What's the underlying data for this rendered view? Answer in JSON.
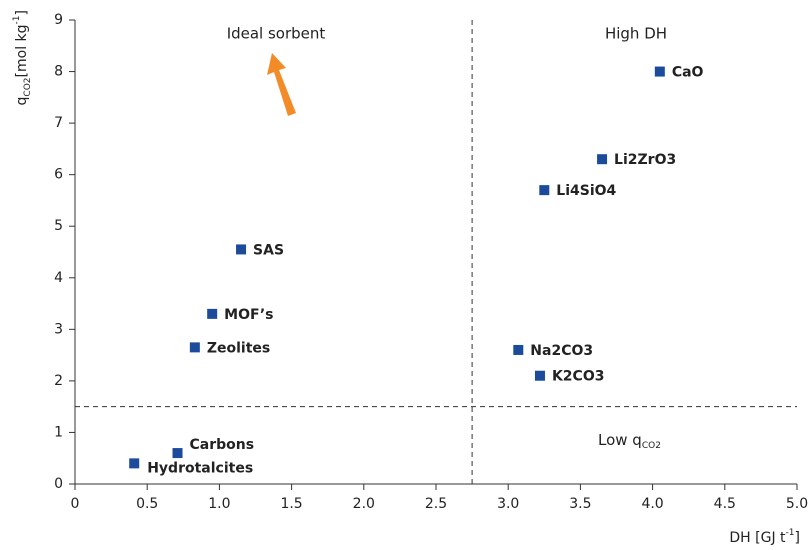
{
  "chart_data": {
    "type": "scatter",
    "xlabel": {
      "main": "DH [GJ t",
      "sup": "-1",
      "end": "]"
    },
    "ylabel": {
      "main": "q",
      "sub": "CO2",
      "rest": "[mol kg",
      "sup": "-1",
      "end": "]"
    },
    "annotations": {
      "ideal": "Ideal sorbent",
      "high": "High DH",
      "low": {
        "main": "Low q",
        "sub": "CO2"
      }
    },
    "thresholds": {
      "x": 2.75,
      "y": 1.5
    },
    "xlim": [
      0,
      5
    ],
    "ylim": [
      0,
      9
    ],
    "xticks": [
      0,
      0.5,
      {
        "value": 1,
        "label": "1.0"
      },
      1.5,
      {
        "value": 2,
        "label": "2.0"
      },
      2.5,
      {
        "value": 3,
        "label": "3.0"
      },
      3.5,
      {
        "value": 4,
        "label": "4.0"
      },
      4.5,
      {
        "value": 5,
        "label": "5.0"
      }
    ],
    "yticks": [
      0,
      1,
      2,
      3,
      4,
      5,
      6,
      7,
      8,
      9
    ],
    "series": [
      {
        "color": "#1c4b9c",
        "labels": [
          "CaO",
          "Li2ZrO3",
          "Li4SiO4",
          "SAS",
          "MOF’s",
          "Zeolites",
          "Na2CO3",
          "K2CO3",
          "Carbons",
          "Hydrotalcites"
        ],
        "x": [
          4.05,
          3.65,
          3.25,
          1.15,
          0.95,
          0.83,
          3.07,
          3.22,
          0.71,
          0.41
        ],
        "values": [
          8.0,
          6.3,
          5.7,
          4.55,
          3.3,
          2.65,
          2.6,
          2.1,
          0.6,
          0.4
        ]
      }
    ]
  }
}
